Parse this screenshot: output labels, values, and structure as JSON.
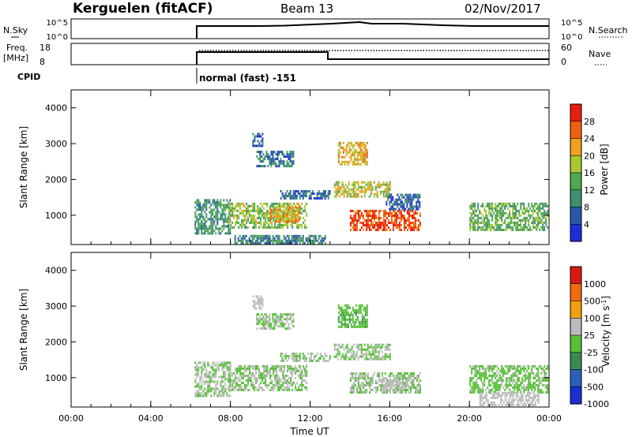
{
  "header": {
    "station": "Kerguelen (fitACF)",
    "beam": "Beam 13",
    "date": "02/Nov/2017"
  },
  "strips": {
    "nsky_label": "N.Sky",
    "nsky_ticks": [
      "10^5",
      "10^0"
    ],
    "nsearch_label": "N.Search",
    "nsearch_ticks": [
      "10^5",
      "10^0"
    ],
    "freq_label": "Freq.",
    "freq_unit": "[MHz]",
    "freq_ticks": [
      "18",
      "8"
    ],
    "nave_label": "Nave",
    "nave_ticks": [
      "60",
      "0"
    ],
    "cpid_label": "CPID",
    "cpid_value": "normal (fast) -151"
  },
  "colors": {
    "power_scale": [
      "#1f2fd8",
      "#2856a8",
      "#3f8f70",
      "#50a850",
      "#a8c832",
      "#f0a020",
      "#f06010",
      "#e81e0e"
    ],
    "velocity_scale": [
      "#1a2fd0",
      "#2a60b8",
      "#3a8a50",
      "#58c038",
      "#bcbcbc",
      "#f0a010",
      "#ef6c10",
      "#d81a10"
    ]
  },
  "chart_data": [
    {
      "type": "heatmap",
      "panel": "power",
      "ylabel": "Slant Range [km]",
      "ylim": [
        180,
        4500
      ],
      "yticks": [
        "1000",
        "2000",
        "3000",
        "4000"
      ],
      "xlim": [
        0,
        24
      ],
      "colorbar_label": "Power [dB]",
      "colorbar_ticks": [
        "4",
        "8",
        "12",
        "16",
        "20",
        "24",
        "28"
      ],
      "colorbar_range": [
        0,
        32
      ],
      "regions": [
        {
          "t0": 6.2,
          "t1": 8.0,
          "r0": 480,
          "r1": 1450,
          "v": 11
        },
        {
          "t0": 7.9,
          "t1": 11.8,
          "r0": 650,
          "r1": 1350,
          "v": 16
        },
        {
          "t0": 10.0,
          "t1": 11.5,
          "r0": 850,
          "r1": 1250,
          "v": 21
        },
        {
          "t0": 13.2,
          "t1": 16.0,
          "r0": 1550,
          "r1": 1950,
          "v": 18
        },
        {
          "t0": 13.4,
          "t1": 14.9,
          "r0": 2400,
          "r1": 3050,
          "v": 21
        },
        {
          "t0": 14.0,
          "t1": 17.5,
          "r0": 600,
          "r1": 1150,
          "v": 28
        },
        {
          "t0": 20.0,
          "t1": 23.9,
          "r0": 600,
          "r1": 1350,
          "v": 14
        },
        {
          "t0": 8.2,
          "t1": 12.8,
          "r0": 200,
          "r1": 450,
          "v": 9
        },
        {
          "t0": 9.3,
          "t1": 11.2,
          "r0": 2350,
          "r1": 2800,
          "v": 8
        },
        {
          "t0": 9.1,
          "t1": 9.6,
          "r0": 2950,
          "r1": 3300,
          "v": 6
        },
        {
          "t0": 10.5,
          "t1": 13.0,
          "r0": 1500,
          "r1": 1700,
          "v": 7
        },
        {
          "t0": 15.8,
          "t1": 17.5,
          "r0": 1200,
          "r1": 1600,
          "v": 6
        }
      ]
    },
    {
      "type": "heatmap",
      "panel": "velocity",
      "ylabel": "Slant Range [km]",
      "ylim": [
        180,
        4500
      ],
      "yticks": [
        "1000",
        "2000",
        "3000",
        "4000"
      ],
      "xlim": [
        0,
        24
      ],
      "xticks": [
        "00:00",
        "04:00",
        "08:00",
        "12:00",
        "16:00",
        "20:00",
        "00:00"
      ],
      "xlabel": "Time UT",
      "colorbar_label": "Velocity [m s^-1]",
      "colorbar_ticks": [
        "1000",
        "500",
        "100",
        "25",
        "-25",
        "-100",
        "-500",
        "-1000"
      ],
      "colorbar_range": [
        -1200,
        1200
      ],
      "regions": [
        {
          "t0": 6.2,
          "t1": 8.0,
          "r0": 480,
          "r1": 1450,
          "v": 0
        },
        {
          "t0": 7.9,
          "t1": 11.8,
          "r0": 650,
          "r1": 1350,
          "v": 0
        },
        {
          "t0": 13.2,
          "t1": 16.0,
          "r0": 1550,
          "r1": 1950,
          "v": 0
        },
        {
          "t0": 13.4,
          "t1": 14.9,
          "r0": 2400,
          "r1": 3050,
          "v": -200
        },
        {
          "t0": 14.0,
          "t1": 17.5,
          "r0": 600,
          "r1": 1150,
          "v": 0
        },
        {
          "t0": 15.5,
          "t1": 17.0,
          "r0": 650,
          "r1": 1000,
          "v": 150
        },
        {
          "t0": 20.0,
          "t1": 23.9,
          "r0": 600,
          "r1": 1350,
          "v": -80
        },
        {
          "t0": 20.5,
          "t1": 23.5,
          "r0": 250,
          "r1": 600,
          "v": 150
        },
        {
          "t0": 9.3,
          "t1": 11.2,
          "r0": 2350,
          "r1": 2800,
          "v": 0
        },
        {
          "t0": 10.5,
          "t1": 13.0,
          "r0": 1500,
          "r1": 1700,
          "v": 0
        },
        {
          "t0": 9.1,
          "t1": 9.6,
          "r0": 2950,
          "r1": 3300,
          "v": 150
        }
      ]
    }
  ]
}
